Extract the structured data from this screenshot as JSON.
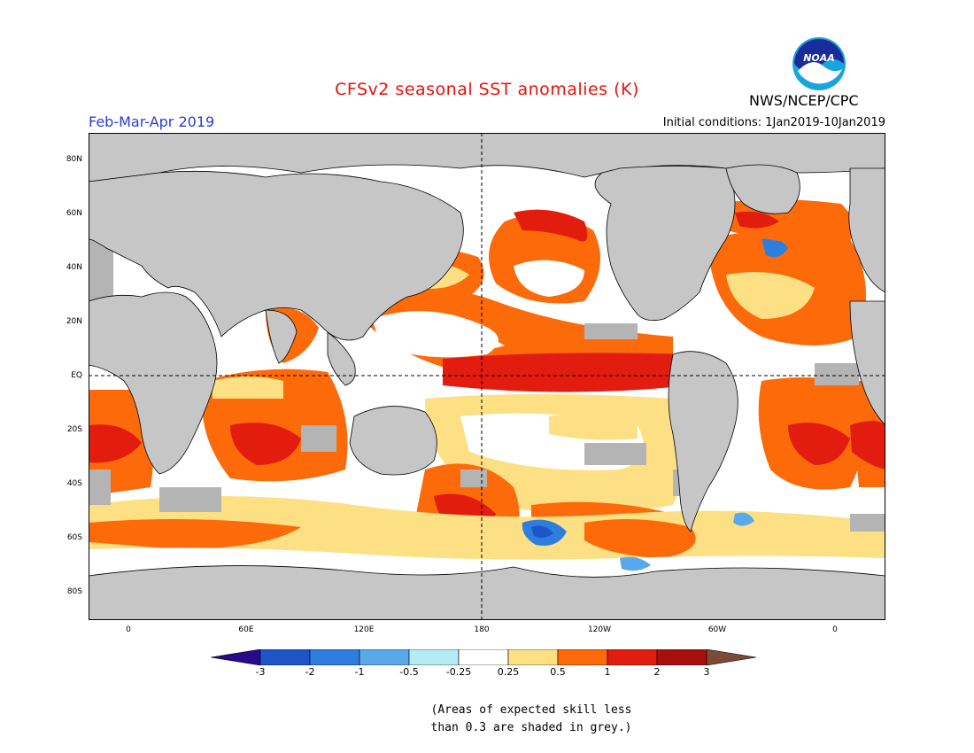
{
  "title": "CFSv2 seasonal SST anomalies (K)",
  "season": "Feb-Mar-Apr 2019",
  "initial_conditions": "Initial conditions: 1Jan2019-10Jan2019",
  "agency": "NWS/NCEP/CPC",
  "logo_text": "NOAA",
  "colors": {
    "title": "#e8120c",
    "season": "#2b3bd6",
    "land": "#c6c6c6",
    "grey_skill": "#b4b4b4"
  },
  "lat_labels": [
    "80N",
    "60N",
    "40N",
    "20N",
    "EQ",
    "20S",
    "40S",
    "60S",
    "80S"
  ],
  "lon_labels": [
    "0",
    "60E",
    "120E",
    "180",
    "120W",
    "60W",
    "0"
  ],
  "colorbar": {
    "labels": [
      "-3",
      "-2",
      "-1",
      "-0.5",
      "-0.25",
      "0.25",
      "0.5",
      "1",
      "2",
      "3"
    ],
    "colors": [
      "#2a0a8c",
      "#1c56c8",
      "#2e7ee0",
      "#5aa8ec",
      "#b4ecf6",
      "#ffffff",
      "#fde084",
      "#fd6a0a",
      "#e31c10",
      "#a81010",
      "#7c4a36"
    ]
  },
  "note": {
    "line1": "(Areas of expected skill less",
    "line2": "than 0.3 are shaded in grey.)"
  }
}
